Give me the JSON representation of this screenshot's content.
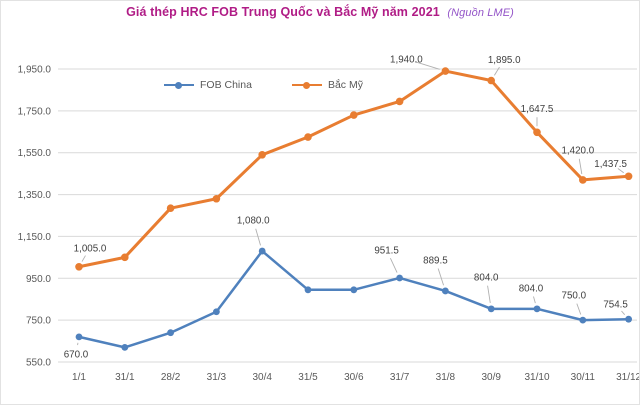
{
  "title": {
    "main": "Giá thép HRC FOB Trung Quốc và Bắc Mỹ năm 2021",
    "source": "(Nguồn LME)"
  },
  "colors": {
    "title_main": "#b01c86",
    "title_source": "#9455c8",
    "fob_china": "#4f81bd",
    "bac_my": "#e87d31",
    "gridline": "#d9d9d9",
    "axis_text": "#595959",
    "label_text": "#404040",
    "leader_line": "#b0b0b0",
    "background": "#ffffff"
  },
  "chart_data": {
    "type": "line",
    "title": "Giá thép HRC FOB Trung Quốc và Bắc Mỹ năm 2021 (Nguồn LME)",
    "categories": [
      "1/1",
      "31/1",
      "28/2",
      "31/3",
      "30/4",
      "31/5",
      "30/6",
      "31/7",
      "31/8",
      "30/9",
      "31/10",
      "30/11",
      "31/12"
    ],
    "series": [
      {
        "name": "FOB China",
        "color": "#4f81bd",
        "values": [
          670,
          620,
          690,
          790,
          1080,
          895,
          895,
          951.5,
          889.5,
          804,
          804,
          750,
          754.5
        ],
        "data_labels": [
          "670.0",
          null,
          null,
          null,
          "1,080.0",
          null,
          null,
          "951.5",
          "889.5",
          "804.0",
          "804.0",
          "750.0",
          "754.5"
        ]
      },
      {
        "name": "Bắc Mỹ",
        "color": "#e87d31",
        "values": [
          1005,
          1050,
          1285,
          1330,
          1540,
          1625,
          1730,
          1795,
          1940,
          1895,
          1647.5,
          1420,
          1437.5
        ],
        "data_labels": [
          "1,005.0",
          null,
          null,
          null,
          null,
          null,
          null,
          null,
          "1,940.0",
          "1,895.0",
          "1,647.5",
          "1,420.0",
          "1,437.5"
        ]
      }
    ],
    "y_axis": {
      "min": 550,
      "max": 1950,
      "tick_values": [
        550,
        750,
        950,
        1150,
        1350,
        1550,
        1750,
        1950
      ],
      "tick_labels": [
        "550.0",
        "750.0",
        "950.0",
        "1,150.0",
        "1,350.0",
        "1,550.0",
        "1,750.0",
        "1,950.0"
      ]
    },
    "grid": true,
    "legend_position": "top",
    "markers": true
  }
}
